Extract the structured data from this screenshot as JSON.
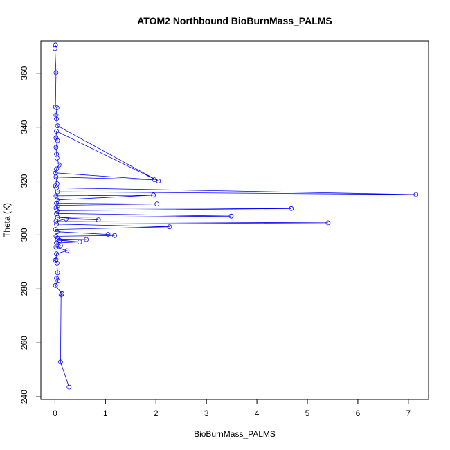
{
  "chart_data": {
    "type": "line",
    "title": "ATOM2 Northbound BioBurnMass_PALMS",
    "xlabel": "BioBurnMass_PALMS",
    "ylabel": "Theta (K)",
    "xlim": [
      -0.28,
      7.4
    ],
    "ylim": [
      239,
      372
    ],
    "xticks": [
      0,
      1,
      2,
      3,
      4,
      5,
      6,
      7
    ],
    "yticks": [
      240,
      260,
      280,
      300,
      320,
      340,
      360
    ],
    "grid": false,
    "legend": "none",
    "color": "#0000ff",
    "marker": "open-circle",
    "series": [
      {
        "points": [
          [
            0.01,
            370.5
          ],
          [
            0.0,
            369.2
          ],
          [
            0.02,
            360.2
          ],
          [
            0.01,
            347.5
          ],
          [
            0.04,
            347.2
          ],
          [
            0.02,
            344.5
          ],
          [
            0.03,
            343.0
          ],
          [
            0.05,
            340.5
          ],
          [
            2.05,
            320.0
          ],
          [
            0.03,
            338.5
          ],
          [
            0.02,
            336.0
          ],
          [
            0.05,
            335.0
          ],
          [
            0.02,
            332.5
          ],
          [
            0.03,
            330.0
          ],
          [
            0.04,
            328.5
          ],
          [
            0.08,
            326.0
          ],
          [
            0.03,
            324.5
          ],
          [
            0.01,
            323.0
          ],
          [
            1.97,
            320.5
          ],
          [
            0.02,
            321.5
          ],
          [
            0.04,
            319.0
          ],
          [
            0.01,
            318.2
          ],
          [
            0.03,
            317.5
          ],
          [
            7.15,
            315.0
          ],
          [
            0.05,
            316.0
          ],
          [
            0.02,
            314.5
          ],
          [
            1.95,
            314.8
          ],
          [
            0.04,
            313.0
          ],
          [
            0.03,
            311.8
          ],
          [
            2.02,
            311.5
          ],
          [
            0.06,
            311.0
          ],
          [
            0.02,
            310.0
          ],
          [
            4.68,
            309.8
          ],
          [
            0.04,
            309.0
          ],
          [
            0.03,
            308.0
          ],
          [
            3.49,
            307.0
          ],
          [
            0.05,
            306.5
          ],
          [
            0.86,
            305.6
          ],
          [
            0.22,
            306.0
          ],
          [
            0.02,
            305.0
          ],
          [
            5.41,
            304.5
          ],
          [
            0.03,
            304.0
          ],
          [
            2.27,
            303.0
          ],
          [
            0.01,
            302.0
          ],
          [
            0.04,
            301.2
          ],
          [
            1.05,
            300.2
          ],
          [
            1.18,
            299.8
          ],
          [
            0.02,
            299.5
          ],
          [
            0.05,
            298.5
          ],
          [
            0.62,
            298.3
          ],
          [
            0.09,
            298.0
          ],
          [
            0.49,
            297.4
          ],
          [
            0.03,
            297.0
          ],
          [
            0.11,
            296.0
          ],
          [
            0.02,
            295.5
          ],
          [
            0.24,
            294.2
          ],
          [
            0.03,
            293.0
          ],
          [
            0.02,
            291.0
          ],
          [
            0.01,
            290.5
          ],
          [
            0.04,
            289.5
          ],
          [
            0.05,
            286.0
          ],
          [
            0.03,
            284.0
          ],
          [
            0.06,
            283.0
          ],
          [
            0.01,
            281.3
          ],
          [
            0.14,
            278.2
          ],
          [
            0.12,
            277.8
          ],
          [
            0.11,
            252.9
          ],
          [
            0.28,
            243.6
          ]
        ]
      }
    ]
  }
}
